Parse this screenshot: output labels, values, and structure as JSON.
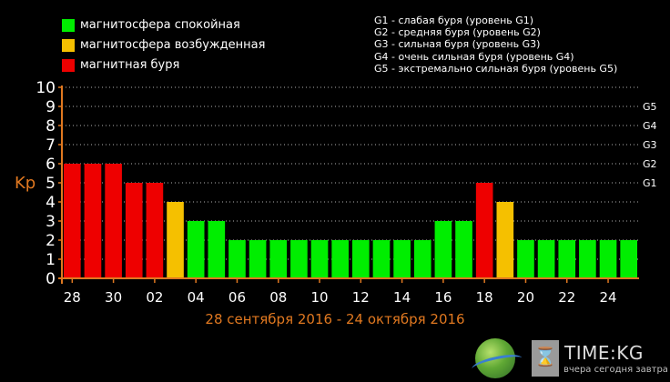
{
  "legend": {
    "items": [
      {
        "label": "магнитосфера спокойная",
        "color": "#00ee00"
      },
      {
        "label": "магнитосфера возбужденная",
        "color": "#f5c000"
      },
      {
        "label": "магнитная буря",
        "color": "#ee0000"
      }
    ]
  },
  "storm_levels": [
    "G1 - слабая буря (уровень G1)",
    "G2 - средняя буря (уровень G2)",
    "G3 - сильная буря (уровень G3)",
    "G4 - очень сильная буря (уровень G4)",
    "G5 - экстремально сильная буря (уровень G5)"
  ],
  "date_range": "28 сентября 2016 - 24 октября 2016",
  "watermark": {
    "title": "TIME:KG",
    "tagline": "вчера сегодня завтра",
    "hourglass_icon": "⌛"
  },
  "chart_data": {
    "type": "bar",
    "ylabel": "Kp",
    "ylim": [
      0,
      10
    ],
    "yticks": [
      "0",
      "1",
      "2",
      "3",
      "4",
      "5",
      "6",
      "7",
      "8",
      "9",
      "10"
    ],
    "xtick_labels": [
      "28",
      "30",
      "02",
      "04",
      "06",
      "08",
      "10",
      "12",
      "14",
      "16",
      "18",
      "20",
      "22",
      "24"
    ],
    "right_axis_labels": [
      {
        "label": "G1",
        "value": 5
      },
      {
        "label": "G2",
        "value": 6
      },
      {
        "label": "G3",
        "value": 7
      },
      {
        "label": "G4",
        "value": 8
      },
      {
        "label": "G5",
        "value": 9
      }
    ],
    "grid": true,
    "colors": {
      "quiet": "#00ee00",
      "active": "#f5c000",
      "storm": "#ee0000",
      "axis": "#e07820",
      "grid": "#b0b0b0"
    },
    "values": [
      6,
      6,
      6,
      5,
      5,
      4,
      3,
      3,
      2,
      2,
      2,
      2,
      2,
      2,
      2,
      2,
      2,
      2,
      3,
      3,
      5,
      4,
      2,
      2,
      2,
      2,
      2,
      2
    ],
    "levels": [
      "storm",
      "storm",
      "storm",
      "storm",
      "storm",
      "active",
      "quiet",
      "quiet",
      "quiet",
      "quiet",
      "quiet",
      "quiet",
      "quiet",
      "quiet",
      "quiet",
      "quiet",
      "quiet",
      "quiet",
      "quiet",
      "quiet",
      "storm",
      "active",
      "quiet",
      "quiet",
      "quiet",
      "quiet",
      "quiet",
      "quiet"
    ]
  }
}
